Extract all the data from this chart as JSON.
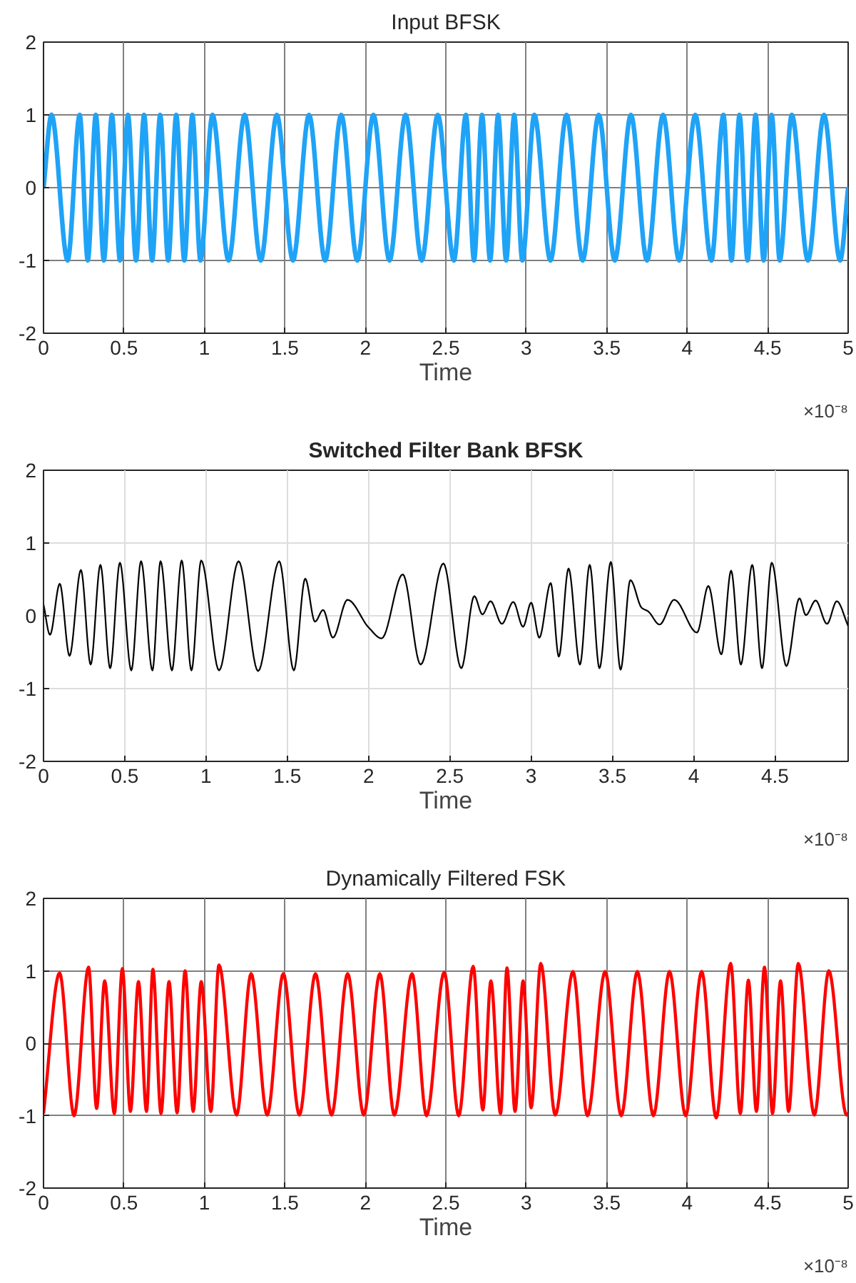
{
  "chart_data": [
    {
      "type": "line",
      "title": "Input BFSK",
      "xlabel": "Time",
      "annotations": [
        "×10⁻⁸"
      ],
      "x": [
        0,
        0.05,
        0.15,
        0.225,
        0.275,
        0.325,
        0.375,
        0.425,
        0.475,
        0.525,
        0.575,
        0.625,
        0.675,
        0.725,
        0.775,
        0.825,
        0.875,
        0.925,
        0.975,
        1.05,
        1.15,
        1.25,
        1.35,
        1.45,
        1.55,
        1.65,
        1.75,
        1.85,
        1.95,
        2.05,
        2.15,
        2.25,
        2.35,
        2.45,
        2.55,
        2.625,
        2.675,
        2.725,
        2.775,
        2.825,
        2.875,
        2.925,
        2.975,
        3.05,
        3.15,
        3.25,
        3.35,
        3.45,
        3.55,
        3.65,
        3.75,
        3.85,
        3.95,
        4.05,
        4.15,
        4.225,
        4.275,
        4.325,
        4.375,
        4.425,
        4.475,
        4.525,
        4.575,
        4.65,
        4.75,
        4.85,
        4.95,
        5
      ],
      "series": [
        {
          "color": "#1fa3f7",
          "values": [
            0,
            1,
            -1,
            1,
            -1,
            1,
            -1,
            1,
            -1,
            1,
            -1,
            1,
            -1,
            1,
            -1,
            1,
            -1,
            1,
            -1,
            1,
            -1,
            1,
            -1,
            1,
            -1,
            1,
            -1,
            1,
            -1,
            1,
            -1,
            1,
            -1,
            1,
            -1,
            1,
            -1,
            1,
            -1,
            1,
            -1,
            1,
            -1,
            1,
            -1,
            1,
            -1,
            1,
            -1,
            1,
            -1,
            1,
            -1,
            1,
            -1,
            1,
            -1,
            1,
            -1,
            1,
            -1,
            1,
            -1,
            1,
            -1,
            1,
            -1,
            0
          ]
        }
      ],
      "xlim": [
        0,
        5
      ],
      "ylim": [
        -2,
        2
      ],
      "xticks": [
        0,
        0.5,
        1,
        1.5,
        2,
        2.5,
        3,
        3.5,
        4,
        4.5,
        5
      ],
      "yticks": [
        -2,
        -1,
        0,
        1,
        2
      ],
      "grid": true
    },
    {
      "type": "line",
      "title": "Switched Filter Bank BFSK",
      "xlabel": "Time",
      "annotations": [
        "×10⁻⁸"
      ],
      "x": [
        0,
        0.04,
        0.1,
        0.16,
        0.23,
        0.29,
        0.35,
        0.41,
        0.47,
        0.54,
        0.6,
        0.67,
        0.72,
        0.79,
        0.85,
        0.91,
        0.97,
        1.08,
        1.2,
        1.32,
        1.45,
        1.54,
        1.61,
        1.67,
        1.72,
        1.78,
        1.87,
        2.0,
        2.08,
        2.21,
        2.32,
        2.46,
        2.57,
        2.65,
        2.7,
        2.75,
        2.82,
        2.89,
        2.95,
        3.0,
        3.05,
        3.12,
        3.17,
        3.23,
        3.3,
        3.36,
        3.42,
        3.49,
        3.55,
        3.61,
        3.68,
        3.72,
        3.79,
        3.88,
        4.02,
        4.09,
        4.17,
        4.23,
        4.29,
        4.36,
        4.42,
        4.48,
        4.57,
        4.65,
        4.69,
        4.75,
        4.82,
        4.88,
        4.95
      ],
      "series": [
        {
          "color": "#000000",
          "values": [
            0.16,
            -0.26,
            0.44,
            -0.55,
            0.63,
            -0.67,
            0.7,
            -0.72,
            0.73,
            -0.75,
            0.75,
            -0.75,
            0.75,
            -0.75,
            0.76,
            -0.75,
            0.76,
            -0.75,
            0.75,
            -0.76,
            0.75,
            -0.75,
            0.51,
            -0.08,
            0.08,
            -0.3,
            0.22,
            -0.16,
            -0.31,
            0.57,
            -0.67,
            0.72,
            -0.72,
            0.27,
            0.02,
            0.2,
            -0.11,
            0.19,
            -0.15,
            0.18,
            -0.3,
            0.45,
            -0.56,
            0.65,
            -0.67,
            0.7,
            -0.72,
            0.74,
            -0.74,
            0.49,
            0.11,
            0.06,
            -0.12,
            0.22,
            -0.23,
            0.41,
            -0.53,
            0.62,
            -0.67,
            0.7,
            -0.72,
            0.73,
            -0.69,
            0.24,
            0.01,
            0.21,
            -0.11,
            0.2,
            -0.14
          ]
        }
      ],
      "xlim": [
        0,
        4.95
      ],
      "ylim": [
        -2,
        2
      ],
      "xticks": [
        0,
        0.5,
        1,
        1.5,
        2,
        2.5,
        3,
        3.5,
        4,
        4.5
      ],
      "yticks": [
        -2,
        -1,
        0,
        1,
        2
      ],
      "grid": true
    },
    {
      "type": "line",
      "title": "Dynamically Filtered FSK",
      "xlabel": "Time",
      "annotations": [
        "×10⁻⁸"
      ],
      "x": [
        0,
        0.1,
        0.19,
        0.28,
        0.33,
        0.38,
        0.44,
        0.49,
        0.54,
        0.59,
        0.64,
        0.68,
        0.73,
        0.78,
        0.83,
        0.88,
        0.93,
        0.98,
        1.04,
        1.09,
        1.2,
        1.29,
        1.39,
        1.49,
        1.59,
        1.69,
        1.79,
        1.89,
        1.99,
        2.09,
        2.18,
        2.29,
        2.38,
        2.49,
        2.58,
        2.67,
        2.73,
        2.78,
        2.84,
        2.88,
        2.93,
        2.98,
        3.03,
        3.09,
        3.18,
        3.29,
        3.38,
        3.49,
        3.59,
        3.69,
        3.79,
        3.89,
        3.99,
        4.09,
        4.18,
        4.27,
        4.33,
        4.38,
        4.43,
        4.48,
        4.53,
        4.58,
        4.63,
        4.69,
        4.79,
        4.88,
        4.99,
        5
      ],
      "series": [
        {
          "color": "#ff0000",
          "values": [
            -0.97,
            0.97,
            -1.0,
            1.05,
            -0.9,
            0.86,
            -0.97,
            1.03,
            -0.94,
            0.85,
            -0.94,
            1.02,
            -0.97,
            0.85,
            -0.96,
            1.0,
            -0.94,
            0.85,
            -0.94,
            1.08,
            -0.99,
            0.96,
            -0.99,
            0.96,
            -0.99,
            0.96,
            -0.99,
            0.96,
            -0.99,
            0.96,
            -0.99,
            0.96,
            -1.0,
            0.98,
            -1.0,
            1.06,
            -0.92,
            0.86,
            -0.97,
            1.04,
            -0.94,
            0.86,
            -0.89,
            1.1,
            -0.99,
            0.99,
            -1.0,
            0.99,
            -1.0,
            0.99,
            -1.0,
            0.99,
            -1.0,
            0.99,
            -1.03,
            1.1,
            -0.97,
            0.87,
            -0.94,
            1.05,
            -0.97,
            0.86,
            -0.94,
            1.1,
            -0.99,
            1.0,
            -0.99,
            -0.97
          ]
        }
      ],
      "xlim": [
        0,
        5
      ],
      "ylim": [
        -2,
        2
      ],
      "xticks": [
        0,
        0.5,
        1,
        1.5,
        2,
        2.5,
        3,
        3.5,
        4,
        4.5,
        5
      ],
      "yticks": [
        -2,
        -1,
        0,
        1,
        2
      ],
      "grid": true
    }
  ]
}
